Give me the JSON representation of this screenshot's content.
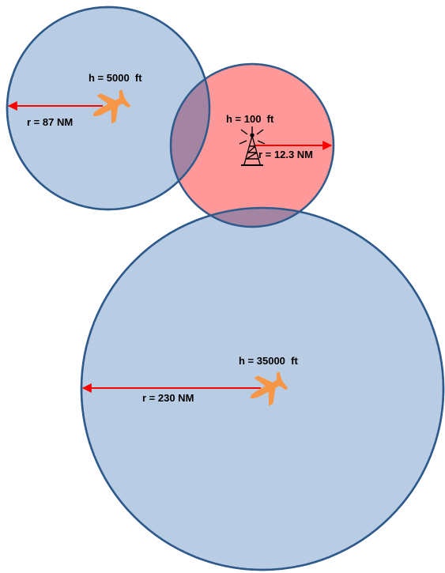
{
  "diagram": {
    "colors": {
      "aircraft_zone_fill": "#b8cce4",
      "aircraft_zone_stroke": "#2f5a8c",
      "tower_zone_fill": "#ff9999",
      "overlap_fill": "#a384a3",
      "radius_arrow": "#ff0000",
      "aircraft_icon": "#f79646",
      "tower_icon": "#000000"
    },
    "small_aircraft": {
      "icon": "airplane-icon",
      "altitude_label": "h = 5000  ft",
      "radius_label": "r = 87 NM"
    },
    "ground_tower": {
      "icon": "radio-tower-icon",
      "altitude_label": "h = 100  ft",
      "radius_label": "r = 12.3 NM"
    },
    "large_aircraft": {
      "icon": "airplane-icon",
      "altitude_label": "h = 35000  ft",
      "radius_label": "r = 230 NM"
    }
  }
}
